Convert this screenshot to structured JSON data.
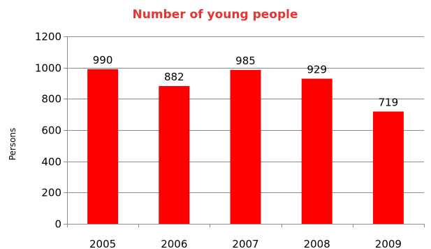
{
  "chart_data": {
    "type": "bar",
    "title": "Number of young people",
    "ylabel": "Persons",
    "xlabel": "",
    "categories": [
      "2005",
      "2006",
      "2007",
      "2008",
      "2009"
    ],
    "values": [
      990,
      882,
      985,
      929,
      719
    ],
    "data_labels": [
      "990",
      "882",
      "985",
      "929",
      "719"
    ],
    "ylim": [
      0,
      1200
    ],
    "yticks": [
      0,
      200,
      400,
      600,
      800,
      1000,
      1200
    ],
    "ytick_labels": [
      "0",
      "200",
      "400",
      "600",
      "800",
      "1000",
      "1200"
    ],
    "grid": true,
    "legend": false
  },
  "colors": {
    "bar": "#ff0000",
    "title": "#e8332f",
    "grid": "#8c8c8c",
    "axis": "#8c8c8c"
  }
}
